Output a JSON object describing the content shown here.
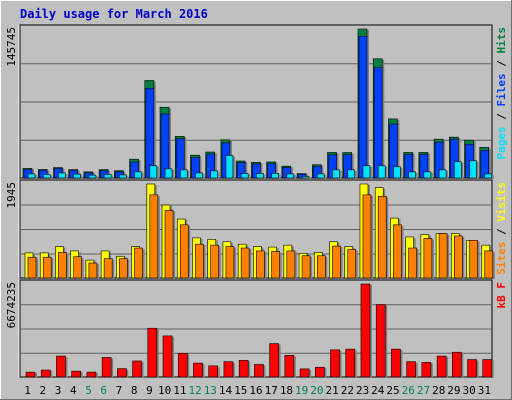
{
  "title": "Daily usage for March 2016",
  "colors": {
    "background": "#c0c0c0",
    "title": "#0000cc",
    "hits": "#008040",
    "files": "#0040ff",
    "pages": "#00e0ff",
    "visits": "#ffff00",
    "sites": "#ff8000",
    "kbytes": "#ff0000",
    "weekend_day": "#00805c",
    "weekday": "#000000"
  },
  "chart_data": [
    {
      "type": "bar",
      "panel": "hits-files-pages",
      "ylabel_max": "145745",
      "legend": [
        {
          "label": "Pages",
          "color": "#00e0ff"
        },
        {
          "label": "Files",
          "color": "#0040ff"
        },
        {
          "label": "Hits",
          "color": "#008040"
        }
      ],
      "legend_sep": " / ",
      "x": [
        "1",
        "2",
        "3",
        "4",
        "5",
        "6",
        "7",
        "8",
        "9",
        "10",
        "11",
        "12",
        "13",
        "14",
        "15",
        "16",
        "17",
        "18",
        "19",
        "20",
        "21",
        "22",
        "23",
        "24",
        "25",
        "26",
        "27",
        "28",
        "29",
        "30",
        "31"
      ],
      "weekend": [
        false,
        false,
        false,
        false,
        true,
        true,
        false,
        false,
        false,
        false,
        false,
        true,
        true,
        false,
        false,
        false,
        false,
        false,
        true,
        true,
        false,
        false,
        false,
        false,
        false,
        true,
        true,
        false,
        false,
        false,
        false
      ],
      "ylim": [
        0,
        145745
      ],
      "series": [
        {
          "name": "Hits",
          "values": [
            9400,
            8300,
            10200,
            8200,
            6000,
            8200,
            7100,
            18400,
            95400,
            69200,
            40800,
            22300,
            25400,
            37300,
            16600,
            15400,
            15700,
            11600,
            4300,
            13000,
            25000,
            24900,
            145745,
            116600,
            57800,
            25000,
            25000,
            38000,
            40000,
            37000,
            30000
          ]
        },
        {
          "name": "Files",
          "values": [
            8300,
            7700,
            9300,
            7300,
            5000,
            7300,
            6000,
            15700,
            87700,
            62700,
            38500,
            20000,
            23400,
            34400,
            15000,
            13800,
            14000,
            10300,
            3500,
            11400,
            22700,
            22800,
            138600,
            108000,
            52800,
            23000,
            23000,
            35000,
            38000,
            33000,
            27000
          ]
        },
        {
          "name": "Pages",
          "values": [
            4000,
            3500,
            5000,
            3800,
            2800,
            3500,
            3000,
            6000,
            12000,
            9000,
            8000,
            5000,
            7000,
            22000,
            4500,
            4500,
            4500,
            4000,
            1500,
            4000,
            8000,
            8000,
            12000,
            12000,
            11000,
            6000,
            6000,
            8000,
            16000,
            17000,
            4000
          ]
        }
      ]
    },
    {
      "type": "bar",
      "panel": "visits-sites",
      "ylabel_max": "1945",
      "legend": [
        {
          "label": "Sites",
          "color": "#ff8000"
        },
        {
          "label": "Visits",
          "color": "#ffff00"
        }
      ],
      "legend_sep": " / ",
      "ylim": [
        0,
        1945
      ],
      "series": [
        {
          "name": "Visits",
          "values": [
            520,
            520,
            650,
            560,
            370,
            560,
            450,
            650,
            1945,
            1510,
            1220,
            830,
            800,
            750,
            700,
            650,
            640,
            680,
            510,
            530,
            750,
            650,
            1945,
            1870,
            1240,
            850,
            900,
            920,
            920,
            780,
            680
          ]
        },
        {
          "name": "Sites",
          "values": [
            430,
            430,
            530,
            440,
            310,
            400,
            400,
            620,
            1720,
            1400,
            1100,
            700,
            680,
            650,
            620,
            560,
            550,
            560,
            460,
            460,
            660,
            590,
            1720,
            1690,
            1100,
            620,
            820,
            920,
            870,
            780,
            560
          ]
        }
      ]
    },
    {
      "type": "bar",
      "panel": "kbytes",
      "ylabel_max": "6674235",
      "legend": [
        {
          "label": "kB F",
          "color": "#ff0000"
        }
      ],
      "legend_sep": "",
      "ylim": [
        0,
        6674235
      ],
      "series": [
        {
          "name": "kB F",
          "values": [
            350000,
            500000,
            1500000,
            420000,
            350000,
            1400000,
            600000,
            1150000,
            3500000,
            2950000,
            1700000,
            1000000,
            800000,
            1100000,
            1200000,
            900000,
            2400000,
            1550000,
            580000,
            700000,
            1950000,
            2000000,
            6674235,
            5200000,
            2000000,
            1100000,
            1050000,
            1500000,
            1780000,
            1250000,
            1250000
          ]
        }
      ]
    }
  ]
}
